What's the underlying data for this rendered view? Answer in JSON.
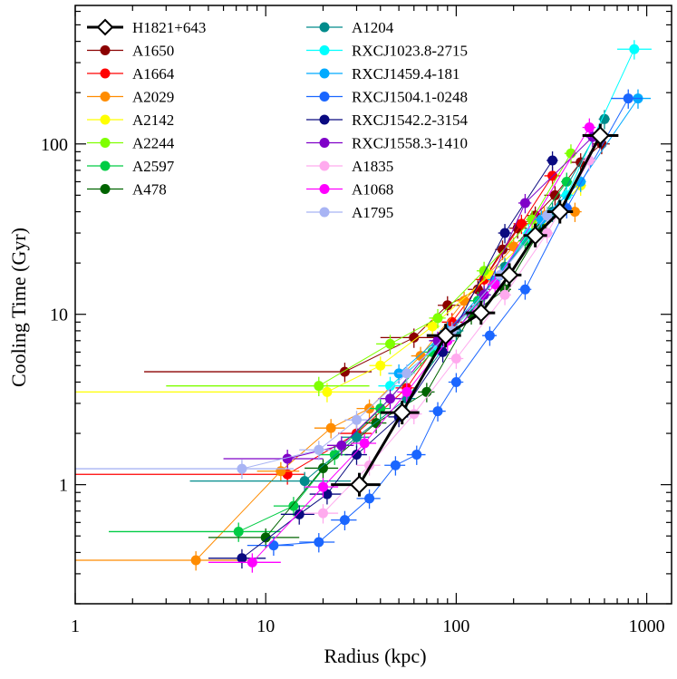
{
  "chart_data": {
    "type": "scatter",
    "xlabel": "Radius (kpc)",
    "ylabel": "Cooling Time (Gyr)",
    "xscale": "log",
    "yscale": "log",
    "xlim": [
      1,
      1350
    ],
    "ylim": [
      0.2,
      650
    ],
    "x_ticks": [
      {
        "value": 1,
        "label": "1"
      },
      {
        "value": 10,
        "label": "10"
      },
      {
        "value": 100,
        "label": "100"
      },
      {
        "value": 1000,
        "label": "1000"
      }
    ],
    "y_ticks": [
      {
        "value": 1,
        "label": "1"
      },
      {
        "value": 10,
        "label": "10"
      },
      {
        "value": 100,
        "label": "100"
      }
    ],
    "legend_position": "top-left",
    "grid": false,
    "series": [
      {
        "name": "H1821+643",
        "color": "#000000",
        "marker": "diamond",
        "points": [
          [
            31,
            1.0,
            22,
            40
          ],
          [
            52,
            2.65,
            40,
            64
          ],
          [
            88,
            7.5,
            70,
            106
          ],
          [
            135,
            10.2,
            112,
            160
          ],
          [
            190,
            17,
            160,
            220
          ],
          [
            260,
            29,
            225,
            300
          ],
          [
            350,
            40,
            300,
            410
          ],
          [
            570,
            112,
            460,
            710
          ]
        ]
      },
      {
        "name": "A1650",
        "color": "#8b0000",
        "marker": "circle",
        "points": [
          [
            26,
            4.6,
            2.3,
            36
          ],
          [
            60,
            7.3,
            40,
            80
          ],
          [
            90,
            11.3,
            80,
            104
          ],
          [
            130,
            14,
            115,
            150
          ],
          [
            175,
            24,
            160,
            195
          ],
          [
            210,
            32,
            190,
            235
          ],
          [
            260,
            38,
            235,
            290
          ],
          [
            330,
            50,
            290,
            370
          ],
          [
            450,
            78,
            400,
            500
          ],
          [
            580,
            100,
            520,
            640
          ]
        ]
      },
      {
        "name": "A1664",
        "color": "#ff0000",
        "marker": "circle",
        "points": [
          [
            13,
            1.15,
            1.0,
            16
          ],
          [
            30,
            2.0,
            24,
            36
          ],
          [
            55,
            3.7,
            48,
            62
          ],
          [
            95,
            9.0,
            84,
            108
          ],
          [
            140,
            16,
            125,
            160
          ],
          [
            220,
            34,
            200,
            245
          ],
          [
            320,
            65,
            290,
            350
          ]
        ]
      },
      {
        "name": "A2029",
        "color": "#ff8c00",
        "marker": "circle",
        "points": [
          [
            4.3,
            0.36,
            1.0,
            8
          ],
          [
            12,
            1.2,
            9,
            15
          ],
          [
            22,
            2.15,
            18,
            26
          ],
          [
            35,
            2.8,
            30,
            40
          ],
          [
            65,
            5.7,
            58,
            72
          ],
          [
            110,
            12,
            100,
            125
          ],
          [
            200,
            25,
            185,
            215
          ],
          [
            290,
            38,
            270,
            310
          ],
          [
            420,
            40,
            385,
            455
          ]
        ]
      },
      {
        "name": "A2142",
        "color": "#ffff00",
        "marker": "circle",
        "points": [
          [
            21,
            3.5,
            1.0,
            42
          ],
          [
            40,
            5.0,
            35,
            46
          ],
          [
            75,
            8.5,
            68,
            82
          ],
          [
            150,
            17,
            135,
            165
          ],
          [
            280,
            33,
            260,
            300
          ],
          [
            450,
            57,
            420,
            480
          ]
        ]
      },
      {
        "name": "A2244",
        "color": "#7fff00",
        "marker": "circle",
        "points": [
          [
            19,
            3.8,
            3.0,
            35
          ],
          [
            45,
            6.7,
            38,
            52
          ],
          [
            80,
            9.5,
            72,
            88
          ],
          [
            140,
            18,
            128,
            152
          ],
          [
            250,
            36,
            232,
            268
          ],
          [
            400,
            88,
            370,
            430
          ]
        ]
      },
      {
        "name": "A2597",
        "color": "#00cc44",
        "marker": "circle",
        "points": [
          [
            7.2,
            0.53,
            1.5,
            12
          ],
          [
            14,
            0.75,
            11,
            17
          ],
          [
            23,
            1.5,
            19,
            27
          ],
          [
            40,
            2.8,
            35,
            45
          ],
          [
            75,
            6.0,
            68,
            82
          ],
          [
            130,
            12,
            118,
            142
          ],
          [
            230,
            27,
            212,
            248
          ],
          [
            380,
            60,
            355,
            405
          ]
        ]
      },
      {
        "name": "A478",
        "color": "#006400",
        "marker": "circle",
        "points": [
          [
            10,
            0.49,
            5,
            15
          ],
          [
            20,
            1.25,
            16,
            24
          ],
          [
            38,
            2.3,
            33,
            43
          ],
          [
            70,
            3.5,
            63,
            77
          ],
          [
            120,
            10,
            110,
            130
          ],
          [
            180,
            14,
            166,
            194
          ],
          [
            280,
            32,
            260,
            300
          ]
        ]
      },
      {
        "name": "A1204",
        "color": "#008b8b",
        "marker": "circle",
        "points": [
          [
            16,
            1.05,
            4,
            28
          ],
          [
            30,
            1.9,
            25,
            35
          ],
          [
            55,
            3.2,
            49,
            61
          ],
          [
            100,
            8.0,
            91,
            109
          ],
          [
            180,
            19,
            166,
            194
          ],
          [
            320,
            40,
            298,
            342
          ],
          [
            600,
            140,
            560,
            640
          ]
        ]
      },
      {
        "name": "RXCJ1023.8-2715",
        "color": "#00ffff",
        "marker": "circle",
        "points": [
          [
            45,
            3.8,
            39,
            51
          ],
          [
            80,
            6.5,
            72,
            88
          ],
          [
            140,
            13,
            128,
            152
          ],
          [
            240,
            30,
            222,
            258
          ],
          [
            380,
            50,
            350,
            410
          ],
          [
            860,
            360,
            700,
            1060
          ]
        ]
      },
      {
        "name": "RXCJ1459.4-181",
        "color": "#00aaff",
        "marker": "circle",
        "points": [
          [
            50,
            4.5,
            44,
            56
          ],
          [
            90,
            8.0,
            82,
            98
          ],
          [
            160,
            16,
            146,
            174
          ],
          [
            280,
            36,
            258,
            302
          ],
          [
            450,
            60,
            420,
            480
          ],
          [
            900,
            185,
            750,
            1050
          ]
        ]
      },
      {
        "name": "RXCJ1504.1-0248",
        "color": "#1a66ff",
        "marker": "circle",
        "points": [
          [
            11,
            0.44,
            8,
            14
          ],
          [
            19,
            0.46,
            15,
            23
          ],
          [
            26,
            0.62,
            22,
            30
          ],
          [
            35,
            0.83,
            30,
            40
          ],
          [
            48,
            1.3,
            42,
            54
          ],
          [
            62,
            1.5,
            55,
            69
          ],
          [
            80,
            2.7,
            72,
            88
          ],
          [
            100,
            4.0,
            91,
            109
          ],
          [
            150,
            7.5,
            137,
            163
          ],
          [
            230,
            14,
            212,
            248
          ],
          [
            380,
            42,
            355,
            405
          ],
          [
            800,
            185,
            650,
            950
          ]
        ]
      },
      {
        "name": "RXCJ1542.2-3154",
        "color": "#0a0a80",
        "marker": "circle",
        "points": [
          [
            7.5,
            0.37,
            5,
            10
          ],
          [
            15,
            0.67,
            12,
            18
          ],
          [
            21,
            0.88,
            17,
            25
          ],
          [
            30,
            1.5,
            26,
            34
          ],
          [
            50,
            2.5,
            44,
            56
          ],
          [
            85,
            6.0,
            77,
            93
          ],
          [
            180,
            30,
            166,
            194
          ],
          [
            320,
            80,
            298,
            342
          ]
        ]
      },
      {
        "name": "RXCJ1558.3-1410",
        "color": "#7f00c8",
        "marker": "circle",
        "points": [
          [
            13,
            1.42,
            6,
            20
          ],
          [
            25,
            1.7,
            21,
            29
          ],
          [
            45,
            3.2,
            39,
            51
          ],
          [
            80,
            7.0,
            72,
            88
          ],
          [
            140,
            13,
            128,
            152
          ],
          [
            230,
            45,
            212,
            248
          ],
          [
            520,
            110,
            480,
            560
          ]
        ]
      },
      {
        "name": "A1835",
        "color": "#ffaaee",
        "marker": "circle",
        "points": [
          [
            20,
            0.68,
            16,
            24
          ],
          [
            35,
            1.3,
            30,
            40
          ],
          [
            60,
            2.6,
            54,
            66
          ],
          [
            100,
            5.5,
            91,
            109
          ],
          [
            180,
            13,
            166,
            194
          ],
          [
            300,
            30,
            278,
            322
          ],
          [
            500,
            80,
            460,
            540
          ]
        ]
      },
      {
        "name": "A1068",
        "color": "#ff00ff",
        "marker": "circle",
        "points": [
          [
            8.5,
            0.35,
            5,
            12
          ],
          [
            20,
            0.97,
            16,
            24
          ],
          [
            33,
            1.75,
            28,
            38
          ],
          [
            55,
            3.5,
            49,
            61
          ],
          [
            90,
            7.0,
            82,
            98
          ],
          [
            160,
            15,
            146,
            174
          ],
          [
            500,
            125,
            460,
            540
          ]
        ]
      },
      {
        "name": "A1795",
        "color": "#a8b4f4",
        "marker": "circle",
        "points": [
          [
            7.5,
            1.24,
            1.0,
            14
          ],
          [
            19,
            1.6,
            15,
            23
          ],
          [
            30,
            2.4,
            26,
            34
          ],
          [
            55,
            4.5,
            49,
            61
          ],
          [
            95,
            8.0,
            86,
            104
          ],
          [
            170,
            17,
            156,
            184
          ],
          [
            300,
            38,
            278,
            322
          ]
        ]
      }
    ]
  }
}
